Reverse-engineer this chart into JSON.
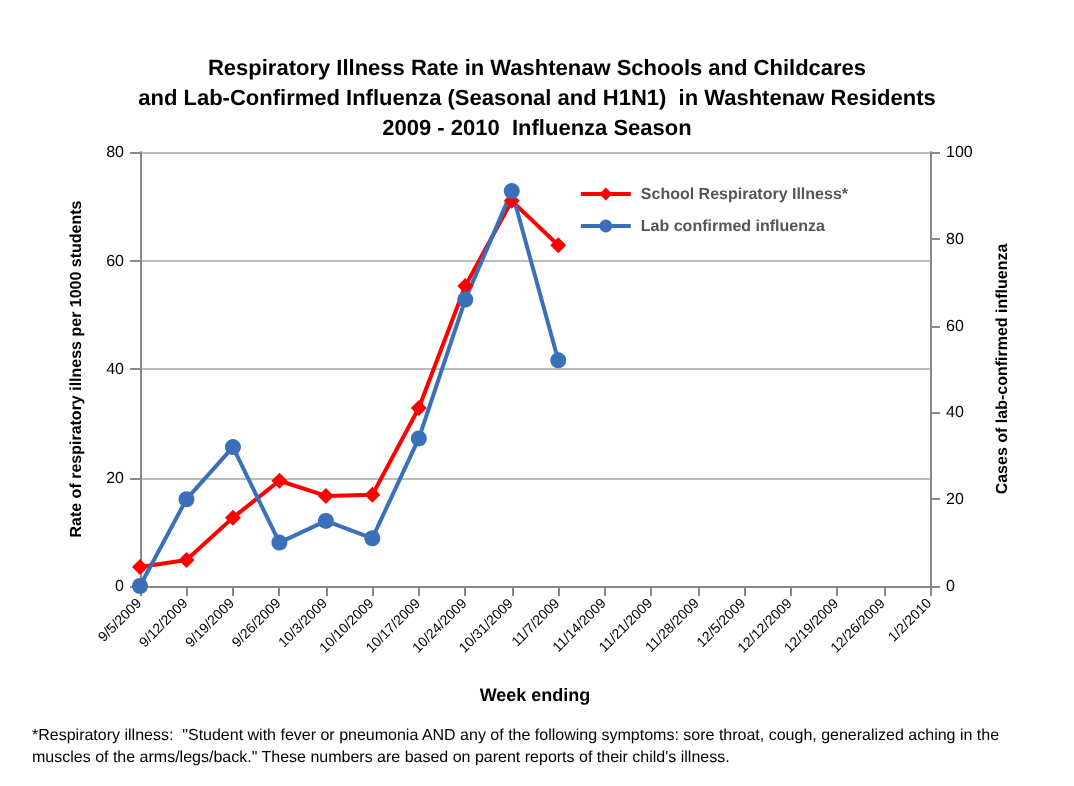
{
  "chart_data": {
    "type": "line",
    "title": "Respiratory Illness Rate in Washtenaw Schools and Childcares\nand Lab-Confirmed Influenza (Seasonal and H1N1)  in Washtenaw Residents\n2009 - 2010  Influenza Season",
    "xlabel": "Week ending",
    "ylabel": "Rate of respiratory illness per 1000 students",
    "y2label": "Cases of lab-confirmed influenza",
    "categories": [
      "9/5/2009",
      "9/12/2009",
      "9/19/2009",
      "9/26/2009",
      "10/3/2009",
      "10/10/2009",
      "10/17/2009",
      "10/24/2009",
      "10/31/2009",
      "11/7/2009",
      "11/14/2009",
      "11/21/2009",
      "11/28/2009",
      "12/5/2009",
      "12/12/2009",
      "12/19/2009",
      "12/26/2009",
      "1/2/2010"
    ],
    "series": [
      {
        "name": "School Respiratory Illness*",
        "color": "#ff0000",
        "marker": "diamond",
        "values": [
          3.5,
          4.8,
          12.6,
          19.4,
          16.6,
          16.8,
          32.8,
          55.3,
          71,
          62.8,
          null,
          null,
          null,
          null,
          null,
          null,
          null,
          null
        ]
      },
      {
        "name": "Lab confirmed influenza",
        "color": "#3a6fba",
        "marker": "circle",
        "axis": "y2",
        "values": [
          0,
          20,
          32,
          10,
          15,
          11,
          34,
          66,
          91,
          52,
          null,
          null,
          null,
          null,
          null,
          null,
          null,
          null
        ]
      }
    ],
    "ylim": [
      0,
      80
    ],
    "yticks": [
      0,
      20,
      40,
      60,
      80
    ],
    "y2lim": [
      0,
      100
    ],
    "y2ticks": [
      0,
      20,
      40,
      60,
      80,
      100
    ],
    "grid": "y",
    "legend": "top right",
    "annotations": [
      "*Respiratory illness:  \"Student with fever or pneumonia AND any of the following symptoms: sore throat, cough, generalized aching in the muscles of the arms/legs/back.\" These numbers are based on parent reports of their child's illness."
    ]
  }
}
